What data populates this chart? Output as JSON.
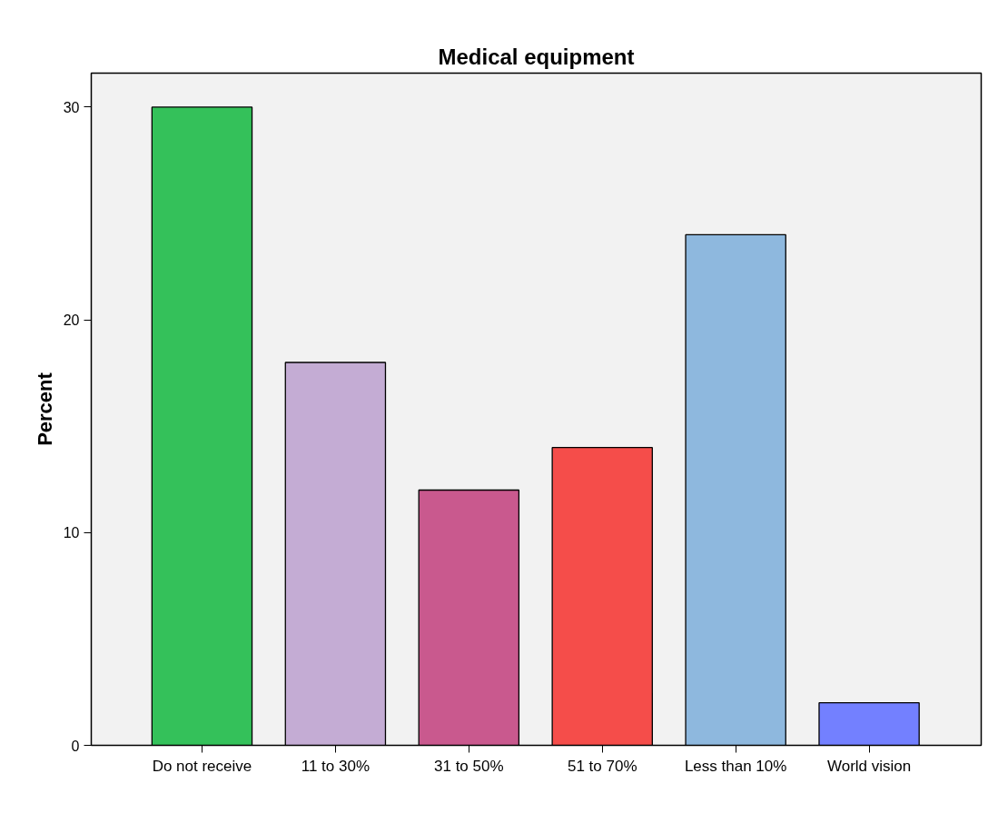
{
  "chart_data": {
    "type": "bar",
    "title": "Medical equipment",
    "ylabel": "Percent",
    "categories": [
      "Do not receive",
      "11 to 30%",
      "31 to 50%",
      "51 to 70%",
      "Less than 10%",
      "World vision"
    ],
    "values": [
      30,
      18,
      12,
      14,
      24,
      2
    ],
    "colors": [
      "#34c15a",
      "#c4acd4",
      "#c9598e",
      "#f54d4a",
      "#8eb8de",
      "#7380ff"
    ],
    "ylim": [
      0,
      31.6
    ],
    "yticks": [
      0,
      10,
      20,
      30
    ],
    "grid": false
  }
}
